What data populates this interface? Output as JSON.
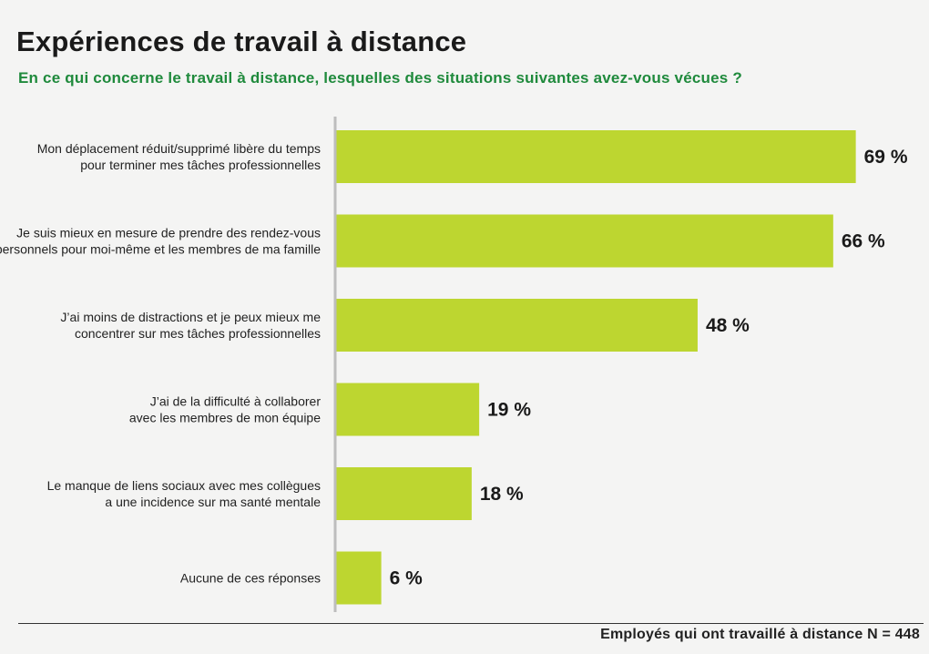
{
  "colors": {
    "bar": "#bdd630",
    "axis": "#bdbdbd",
    "title": "#1a1a1a",
    "subtitle": "#1f8a3c"
  },
  "chart_data": {
    "type": "bar",
    "orientation": "horizontal",
    "title": "Expériences de travail à distance",
    "subtitle": "En ce qui concerne le travail à distance, lesquelles des situations suivantes avez-vous vécues ?",
    "categories": [
      [
        "Mon déplacement réduit/supprimé libère du temps",
        "pour terminer mes tâches professionnelles"
      ],
      [
        "Je suis mieux en mesure de prendre des rendez-vous",
        "personnels pour moi-même et les membres de ma famille"
      ],
      [
        "J’ai moins de distractions et je peux mieux me",
        "concentrer sur mes tâches professionnelles"
      ],
      [
        "J’ai de la difficulté à collaborer",
        "avec les membres de mon équipe"
      ],
      [
        "Le manque de liens sociaux avec mes collègues",
        "a une incidence sur ma santé mentale"
      ],
      [
        "Aucune de ces réponses"
      ]
    ],
    "values": [
      69,
      66,
      48,
      19,
      18,
      6
    ],
    "value_labels": [
      "69 %",
      "66 %",
      "48 %",
      "19 %",
      "18 %",
      "6 %"
    ],
    "unit": "%",
    "grid": false
  },
  "footnote": "Employés qui ont travaillé à distance N = 448"
}
